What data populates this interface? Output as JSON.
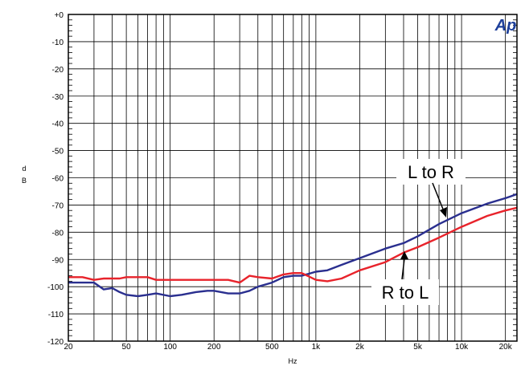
{
  "chart_data": {
    "type": "line",
    "xlabel": "Hz",
    "ylabel": "dB",
    "xscale": "log",
    "xlim": [
      20,
      24000
    ],
    "ylim": [
      -120,
      0
    ],
    "grid": true,
    "x_tick_values": [
      20,
      50,
      100,
      200,
      500,
      1000,
      2000,
      5000,
      10000,
      20000
    ],
    "x_tick_labels": [
      "20",
      "50",
      "100",
      "200",
      "500",
      "1k",
      "2k",
      "5k",
      "10k",
      "20k"
    ],
    "y_tick_values": [
      0,
      -10,
      -20,
      -30,
      -40,
      -50,
      -60,
      -70,
      -80,
      -90,
      -100,
      -110,
      -120
    ],
    "y_tick_labels": [
      "+0",
      "-10",
      "-20",
      "-30",
      "-40",
      "-50",
      "-60",
      "-70",
      "-80",
      "-90",
      "-100",
      "-110",
      "-120"
    ],
    "series": [
      {
        "name": "L to R",
        "color": "#2a2f8f",
        "x": [
          20,
          25,
          30,
          35,
          40,
          45,
          50,
          60,
          70,
          80,
          100,
          120,
          150,
          180,
          200,
          250,
          300,
          350,
          400,
          500,
          600,
          700,
          800,
          1000,
          1200,
          1500,
          2000,
          3000,
          4000,
          5000,
          7000,
          10000,
          15000,
          20000,
          24000
        ],
        "y": [
          -98.5,
          -98.5,
          -98.5,
          -101,
          -100.5,
          -102,
          -103,
          -103.5,
          -103,
          -102.5,
          -103.5,
          -103,
          -102,
          -101.5,
          -101.5,
          -102.5,
          -102.5,
          -101.5,
          -100,
          -98.5,
          -96.5,
          -96,
          -96,
          -94.5,
          -94,
          -92,
          -89.5,
          -86,
          -84,
          -81.5,
          -77,
          -73,
          -69.5,
          -67.5,
          -66
        ]
      },
      {
        "name": "R to L",
        "color": "#e8232b",
        "x": [
          20,
          25,
          30,
          35,
          40,
          45,
          50,
          60,
          70,
          80,
          100,
          120,
          150,
          200,
          250,
          300,
          350,
          400,
          500,
          600,
          700,
          800,
          1000,
          1200,
          1500,
          2000,
          3000,
          4000,
          5000,
          7000,
          10000,
          15000,
          20000,
          24000
        ],
        "y": [
          -96.5,
          -96.5,
          -97.5,
          -97,
          -97,
          -97,
          -96.5,
          -96.5,
          -96.5,
          -97.5,
          -97.5,
          -97.5,
          -97.5,
          -97.5,
          -97.5,
          -98.5,
          -96,
          -96.5,
          -97,
          -95.5,
          -95,
          -95,
          -97.5,
          -98,
          -97,
          -94,
          -91,
          -87.5,
          -85.5,
          -82,
          -78,
          -74,
          -72,
          -71
        ]
      }
    ],
    "annotations": [
      {
        "text": "L to R",
        "series": "L to R"
      },
      {
        "text": "R to L",
        "series": "R to L"
      }
    ],
    "logo": "Ap"
  }
}
